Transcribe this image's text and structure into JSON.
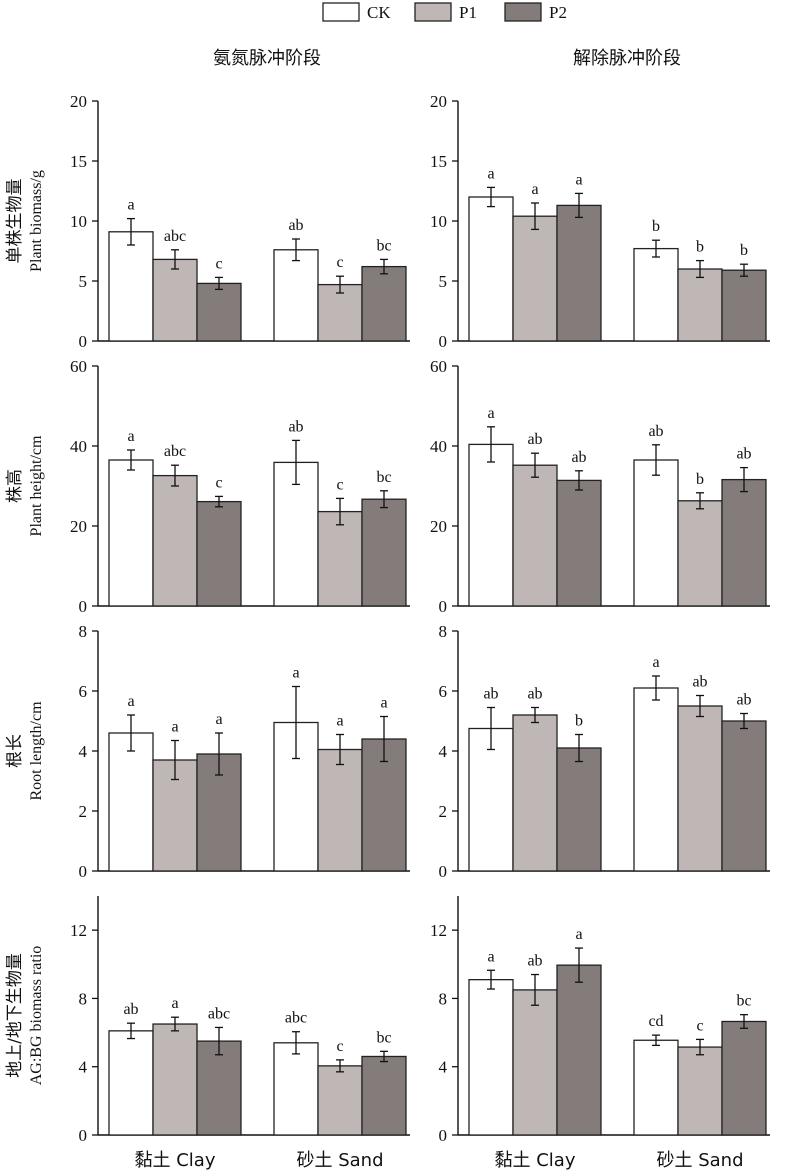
{
  "legend": [
    {
      "label": "CK",
      "color": "#ffffff"
    },
    {
      "label": "P1",
      "color": "#bfb6b6"
    },
    {
      "label": "P2",
      "color": "#847b7b"
    }
  ],
  "column_titles": [
    "氨氮脉冲阶段",
    "解除脉冲阶段"
  ],
  "row_labels": [
    {
      "zh": "单株生物量",
      "en": "Plant biomass/g"
    },
    {
      "zh": "株高",
      "en": "Plant height/cm"
    },
    {
      "zh": "根长",
      "en": "Root length/cm"
    },
    {
      "zh": "地上/地下生物量",
      "en": "AG:BG biomass ratio"
    }
  ],
  "group_labels": [
    "黏土 Clay",
    "砂土 Sand"
  ],
  "chart_data": [
    {
      "type": "bar",
      "row": 0,
      "col": 0,
      "categories": [
        "黏土 Clay",
        "砂土 Sand"
      ],
      "series": [
        {
          "name": "CK",
          "values": [
            9.1,
            7.6
          ],
          "errors": [
            1.1,
            0.9
          ],
          "letters": [
            "a",
            "ab"
          ]
        },
        {
          "name": "P1",
          "values": [
            6.8,
            4.7
          ],
          "errors": [
            0.8,
            0.7
          ],
          "letters": [
            "abc",
            "c"
          ]
        },
        {
          "name": "P2",
          "values": [
            4.8,
            6.2
          ],
          "errors": [
            0.5,
            0.6
          ],
          "letters": [
            "c",
            "bc"
          ]
        }
      ],
      "ylim": [
        0,
        20
      ],
      "yticks": [
        0,
        5,
        10,
        15,
        20
      ],
      "ylabel": "单株生物量 Plant biomass/g"
    },
    {
      "type": "bar",
      "row": 0,
      "col": 1,
      "categories": [
        "黏土 Clay",
        "砂土 Sand"
      ],
      "series": [
        {
          "name": "CK",
          "values": [
            12.0,
            7.7
          ],
          "errors": [
            0.8,
            0.7
          ],
          "letters": [
            "a",
            "b"
          ]
        },
        {
          "name": "P1",
          "values": [
            10.4,
            6.0
          ],
          "errors": [
            1.1,
            0.7
          ],
          "letters": [
            "a",
            "b"
          ]
        },
        {
          "name": "P2",
          "values": [
            11.3,
            5.9
          ],
          "errors": [
            1.0,
            0.5
          ],
          "letters": [
            "a",
            "b"
          ]
        }
      ],
      "ylim": [
        0,
        20
      ],
      "yticks": [
        0,
        5,
        10,
        15,
        20
      ]
    },
    {
      "type": "bar",
      "row": 1,
      "col": 0,
      "categories": [
        "黏土 Clay",
        "砂土 Sand"
      ],
      "series": [
        {
          "name": "CK",
          "values": [
            36.5,
            35.9
          ],
          "errors": [
            2.5,
            5.5
          ],
          "letters": [
            "a",
            "ab"
          ]
        },
        {
          "name": "P1",
          "values": [
            32.6,
            23.6
          ],
          "errors": [
            2.6,
            3.3
          ],
          "letters": [
            "abc",
            "c"
          ]
        },
        {
          "name": "P2",
          "values": [
            26.1,
            26.7
          ],
          "errors": [
            1.3,
            2.1
          ],
          "letters": [
            "c",
            "bc"
          ]
        }
      ],
      "ylim": [
        0,
        60
      ],
      "yticks": [
        0,
        20,
        40,
        60
      ],
      "ylabel": "株高 Plant height/cm"
    },
    {
      "type": "bar",
      "row": 1,
      "col": 1,
      "categories": [
        "黏土 Clay",
        "砂土 Sand"
      ],
      "series": [
        {
          "name": "CK",
          "values": [
            40.4,
            36.5
          ],
          "errors": [
            4.4,
            3.8
          ],
          "letters": [
            "a",
            "ab"
          ]
        },
        {
          "name": "P1",
          "values": [
            35.2,
            26.3
          ],
          "errors": [
            3.0,
            2.0
          ],
          "letters": [
            "ab",
            "b"
          ]
        },
        {
          "name": "P2",
          "values": [
            31.4,
            31.6
          ],
          "errors": [
            2.4,
            3.0
          ],
          "letters": [
            "ab",
            "ab"
          ]
        }
      ],
      "ylim": [
        0,
        60
      ],
      "yticks": [
        0,
        20,
        40,
        60
      ]
    },
    {
      "type": "bar",
      "row": 2,
      "col": 0,
      "categories": [
        "黏土 Clay",
        "砂土 Sand"
      ],
      "series": [
        {
          "name": "CK",
          "values": [
            4.6,
            4.95
          ],
          "errors": [
            0.6,
            1.2
          ],
          "letters": [
            "a",
            "a"
          ]
        },
        {
          "name": "P1",
          "values": [
            3.7,
            4.05
          ],
          "errors": [
            0.65,
            0.5
          ],
          "letters": [
            "a",
            "a"
          ]
        },
        {
          "name": "P2",
          "values": [
            3.9,
            4.4
          ],
          "errors": [
            0.7,
            0.75
          ],
          "letters": [
            "a",
            "a"
          ]
        }
      ],
      "ylim": [
        0,
        8
      ],
      "yticks": [
        0,
        2,
        4,
        6,
        8
      ],
      "ylabel": "根长 Root length/cm"
    },
    {
      "type": "bar",
      "row": 2,
      "col": 1,
      "categories": [
        "黏土 Clay",
        "砂土 Sand"
      ],
      "series": [
        {
          "name": "CK",
          "values": [
            4.75,
            6.1
          ],
          "errors": [
            0.7,
            0.4
          ],
          "letters": [
            "ab",
            "a"
          ]
        },
        {
          "name": "P1",
          "values": [
            5.2,
            5.5
          ],
          "errors": [
            0.25,
            0.35
          ],
          "letters": [
            "ab",
            "ab"
          ]
        },
        {
          "name": "P2",
          "values": [
            4.1,
            5.0
          ],
          "errors": [
            0.45,
            0.25
          ],
          "letters": [
            "b",
            "ab"
          ]
        }
      ],
      "ylim": [
        0,
        8
      ],
      "yticks": [
        0,
        2,
        4,
        6,
        8
      ]
    },
    {
      "type": "bar",
      "row": 3,
      "col": 0,
      "categories": [
        "黏土 Clay",
        "砂土 Sand"
      ],
      "series": [
        {
          "name": "CK",
          "values": [
            6.1,
            5.4
          ],
          "errors": [
            0.45,
            0.65
          ],
          "letters": [
            "ab",
            "abc"
          ]
        },
        {
          "name": "P1",
          "values": [
            6.5,
            4.05
          ],
          "errors": [
            0.4,
            0.35
          ],
          "letters": [
            "a",
            "c"
          ]
        },
        {
          "name": "P2",
          "values": [
            5.5,
            4.6
          ],
          "errors": [
            0.8,
            0.3
          ],
          "letters": [
            "abc",
            "bc"
          ]
        }
      ],
      "ylim": [
        0,
        14
      ],
      "yticks": [
        0,
        4,
        8,
        12
      ],
      "ylabel": "地上/地下生物量 AG:BG biomass ratio"
    },
    {
      "type": "bar",
      "row": 3,
      "col": 1,
      "categories": [
        "黏土 Clay",
        "砂土 Sand"
      ],
      "series": [
        {
          "name": "CK",
          "values": [
            9.1,
            5.55
          ],
          "errors": [
            0.55,
            0.3
          ],
          "letters": [
            "a",
            "cd"
          ]
        },
        {
          "name": "P1",
          "values": [
            8.5,
            5.15
          ],
          "errors": [
            0.9,
            0.45
          ],
          "letters": [
            "ab",
            "c"
          ]
        },
        {
          "name": "P2",
          "values": [
            9.95,
            6.65
          ],
          "errors": [
            1.0,
            0.4
          ],
          "letters": [
            "a",
            "bc"
          ]
        }
      ],
      "ylim": [
        0,
        14
      ],
      "yticks": [
        0,
        4,
        8,
        12
      ]
    }
  ]
}
